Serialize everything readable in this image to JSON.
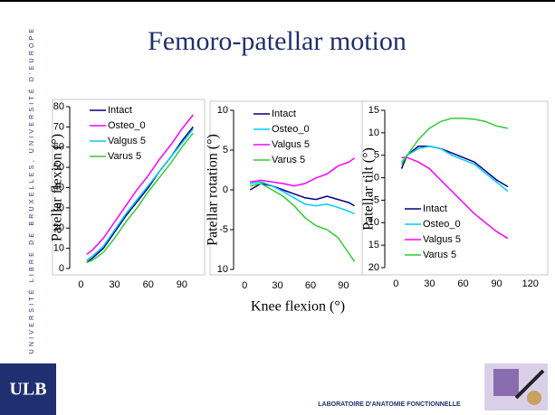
{
  "slide": {
    "title": "Femoro-patellar motion",
    "side_text": "UNIVERSITÉ LIBRE DE BRUXELLES, UNIVERSITÉ D'EUROPE",
    "logo": "ULB",
    "footer": "LABORATOIRE D'ANATOMIE FONCTIONNELLE"
  },
  "chart_data": [
    {
      "type": "line",
      "ylabel": "Patellar flexion (°)",
      "x": [
        5,
        10,
        20,
        30,
        40,
        50,
        60,
        70,
        80,
        90,
        100
      ],
      "series": [
        {
          "name": "Intact",
          "color": "#000080",
          "values": [
            3,
            5,
            10,
            18,
            26,
            33,
            40,
            48,
            55,
            63,
            70
          ]
        },
        {
          "name": "Osteo_0",
          "color": "#ff00ff",
          "values": [
            7,
            9,
            15,
            23,
            31,
            39,
            46,
            54,
            61,
            69,
            76
          ]
        },
        {
          "name": "Valgus 5",
          "color": "#00ccff",
          "values": [
            4,
            6,
            11,
            19,
            27,
            34,
            41,
            48,
            55,
            62,
            69
          ]
        },
        {
          "name": "Varus 5",
          "color": "#33cc33",
          "values": [
            3,
            4,
            8,
            15,
            23,
            30,
            38,
            45,
            52,
            60,
            67
          ]
        }
      ],
      "xlim": [
        -10,
        107
      ],
      "ylim": [
        0,
        80
      ],
      "xticks": [
        0,
        30,
        60,
        90
      ],
      "yticks": [
        0,
        10,
        20,
        30,
        40,
        50,
        60,
        70,
        80
      ],
      "legend": "upper left"
    },
    {
      "type": "line",
      "ylabel": "Patellar rotation (°)",
      "xlabel": "Knee flexion (°)",
      "x": [
        5,
        15,
        25,
        35,
        45,
        55,
        65,
        75,
        85,
        95,
        100
      ],
      "series": [
        {
          "name": "Intact",
          "color": "#000080",
          "values": [
            0,
            0.8,
            0.5,
            0,
            -0.5,
            -1,
            -1.2,
            -0.8,
            -1.2,
            -1.6,
            -2
          ]
        },
        {
          "name": "Osteo_0",
          "color": "#00ccff",
          "values": [
            0.8,
            1,
            0.5,
            -0.2,
            -1,
            -1.8,
            -2,
            -1.8,
            -2.2,
            -2.7,
            -3
          ]
        },
        {
          "name": "Valgus 5",
          "color": "#ff00ff",
          "values": [
            1,
            1.2,
            1,
            0.8,
            0.5,
            0.8,
            1.5,
            2,
            3,
            3.5,
            4
          ]
        },
        {
          "name": "Varus 5",
          "color": "#33cc33",
          "values": [
            0.5,
            0.8,
            0,
            -0.8,
            -2,
            -3.5,
            -4.5,
            -5,
            -6,
            -8,
            -9
          ]
        }
      ],
      "xlim": [
        -10,
        107
      ],
      "ylim": [
        -10,
        10
      ],
      "xticks": [
        0,
        30,
        60,
        90
      ],
      "yticks": [
        10,
        5,
        0,
        -5,
        {
          "value": -10,
          "label": "10"
        }
      ],
      "legend": "upper left"
    },
    {
      "type": "line",
      "ylabel": "Patellar tilt (°)",
      "x": [
        5,
        10,
        20,
        30,
        40,
        50,
        60,
        70,
        80,
        90,
        100
      ],
      "series": [
        {
          "name": "Intact",
          "color": "#000080",
          "values": [
            2,
            5,
            7,
            7,
            6.5,
            5.5,
            4.5,
            3.5,
            1.5,
            -0.5,
            -2
          ]
        },
        {
          "name": "Osteo_0",
          "color": "#00ccff",
          "values": [
            3.5,
            5,
            6.5,
            7,
            6.5,
            5,
            4,
            3,
            1,
            -1,
            -3
          ]
        },
        {
          "name": "Valgus 5",
          "color": "#ff00ff",
          "values": [
            4.5,
            4.5,
            3.5,
            2,
            -0.5,
            -3,
            -5.5,
            -8,
            -10,
            -12,
            -13.5
          ]
        },
        {
          "name": "Varus 5",
          "color": "#33cc33",
          "values": [
            3,
            5,
            8.5,
            11,
            12.5,
            13.2,
            13.2,
            13,
            12.5,
            11.5,
            11
          ]
        }
      ],
      "xlim": [
        -10,
        130
      ],
      "ylim": [
        -20,
        15
      ],
      "xticks": [
        0,
        30,
        60,
        90,
        120
      ],
      "yticks": [
        15,
        10,
        5,
        0,
        -5,
        -10,
        {
          "value": -15,
          "label": "15"
        },
        {
          "value": -20,
          "label": "20"
        }
      ],
      "legend": "lower left"
    }
  ]
}
